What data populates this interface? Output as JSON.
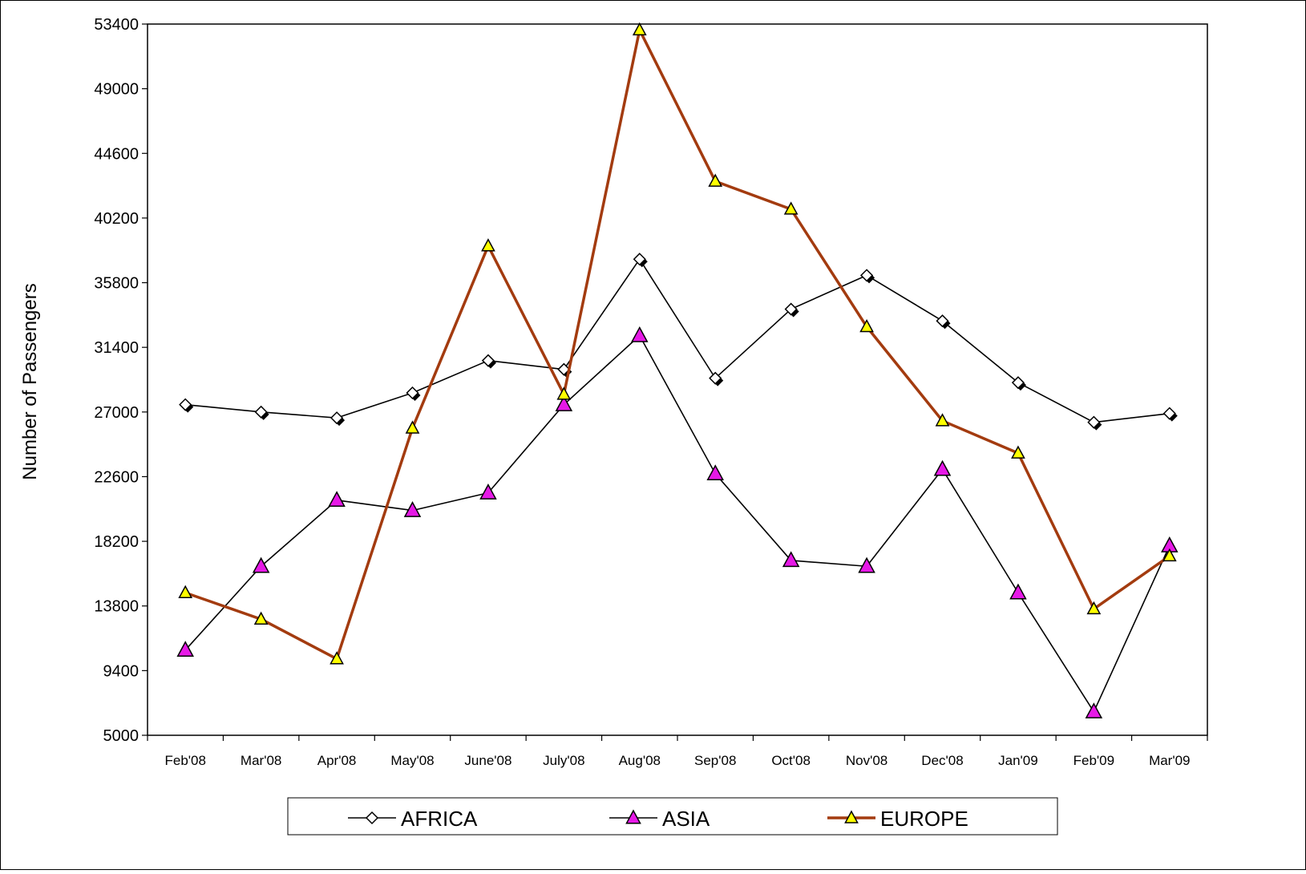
{
  "chart_data": {
    "type": "line",
    "ylabel": "Number of Passengers",
    "ylim": [
      5000,
      53400
    ],
    "yticks": [
      5000,
      9400,
      13800,
      18200,
      22600,
      27000,
      31400,
      35800,
      40200,
      44600,
      49000,
      53400
    ],
    "categories": [
      "Feb'08",
      "Mar'08",
      "Apr'08",
      "May'08",
      "June'08",
      "July'08",
      "Aug'08",
      "Sep'08",
      "Oct'08",
      "Nov'08",
      "Dec'08",
      "Jan'09",
      "Feb'09",
      "Mar'09"
    ],
    "series": [
      {
        "name": "AFRICA",
        "marker": "diamond",
        "line_color": "#000000",
        "marker_fill": "#ffffff",
        "values": [
          27500,
          27000,
          26600,
          28300,
          30500,
          29900,
          37400,
          29300,
          34000,
          36300,
          33200,
          29000,
          26300,
          26900
        ]
      },
      {
        "name": "ASIA",
        "marker": "triangle",
        "line_color": "#000000",
        "marker_fill": "#e619e6",
        "values": [
          10800,
          16500,
          21000,
          20300,
          21500,
          27500,
          32200,
          22800,
          16900,
          16500,
          23100,
          14700,
          6600,
          17900
        ]
      },
      {
        "name": "EUROPE",
        "marker": "triangle",
        "line_color": "#a33b0f",
        "marker_fill": "#ffff00",
        "values": [
          14700,
          12900,
          10200,
          25900,
          38300,
          28200,
          53000,
          42700,
          40800,
          32800,
          26400,
          24200,
          13600,
          17200
        ]
      }
    ],
    "grid": false,
    "legend_position": "bottom"
  }
}
